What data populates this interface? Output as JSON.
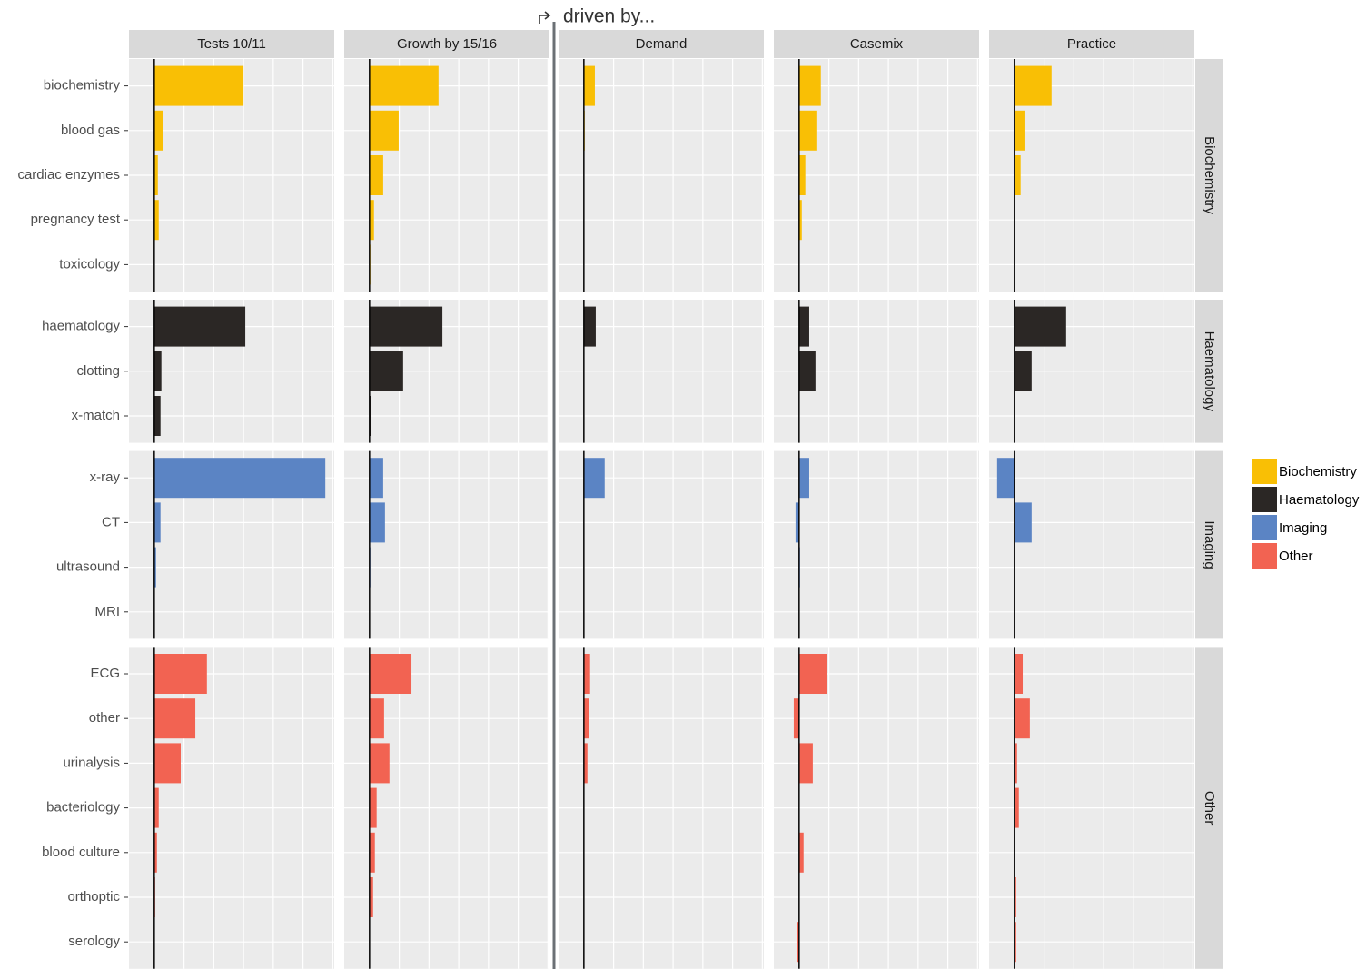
{
  "chart_data": {
    "type": "bar",
    "orientation": "horizontal",
    "annotation": "driven by...",
    "columns": [
      "Tests 10/11",
      "Growth by 15/16",
      "Demand",
      "Casemix",
      "Practice"
    ],
    "xlim": [
      -0.85,
      6.05
    ],
    "xticks": [
      0,
      1,
      2,
      3,
      4,
      5,
      6
    ],
    "grid": true,
    "legend": "right",
    "groups": [
      {
        "name": "Biochemistry",
        "color": "#f9bf05",
        "categories": [
          "biochemistry",
          "blood gas",
          "cardiac enzymes",
          "pregnancy test",
          "toxicology"
        ],
        "values": [
          [
            3.0,
            0.31,
            0.12,
            0.15,
            0
          ],
          [
            2.32,
            0.98,
            0.46,
            0.15,
            0.03
          ],
          [
            0.37,
            0.03,
            0,
            0,
            0
          ],
          [
            0.73,
            0.58,
            0.21,
            0.09,
            0
          ],
          [
            1.25,
            0.37,
            0.21,
            0,
            0
          ]
        ]
      },
      {
        "name": "Haematology",
        "color": "#2b2725",
        "categories": [
          "haematology",
          "clotting",
          "x-match"
        ],
        "values": [
          [
            3.06,
            0.24,
            0.21
          ],
          [
            2.45,
            1.13,
            0.06
          ],
          [
            0.4,
            0,
            0
          ],
          [
            0.34,
            0.55,
            0
          ],
          [
            1.74,
            0.58,
            0
          ]
        ]
      },
      {
        "name": "Imaging",
        "color": "#5b84c4",
        "categories": [
          "x-ray",
          "CT",
          "ultrasound",
          "MRI"
        ],
        "values": [
          [
            5.75,
            0.21,
            0.06,
            0
          ],
          [
            0.46,
            0.52,
            0.03,
            0
          ],
          [
            0.7,
            0,
            0,
            0
          ],
          [
            0.34,
            -0.12,
            0.03,
            0
          ],
          [
            -0.58,
            0.58,
            0,
            0
          ]
        ]
      },
      {
        "name": "Other",
        "color": "#f26352",
        "categories": [
          "ECG",
          "other",
          "urinalysis",
          "bacteriology",
          "blood culture",
          "orthoptic",
          "serology"
        ],
        "values": [
          [
            1.77,
            1.38,
            0.89,
            0.15,
            0.09,
            0.03,
            0
          ],
          [
            1.41,
            0.49,
            0.67,
            0.24,
            0.18,
            0.12,
            0
          ],
          [
            0.21,
            0.18,
            0.12,
            0,
            0,
            0,
            0
          ],
          [
            0.95,
            -0.18,
            0.46,
            0.02,
            0.15,
            0,
            -0.06
          ],
          [
            0.28,
            0.52,
            0.09,
            0.15,
            0,
            0.06,
            0.06
          ]
        ]
      }
    ]
  }
}
